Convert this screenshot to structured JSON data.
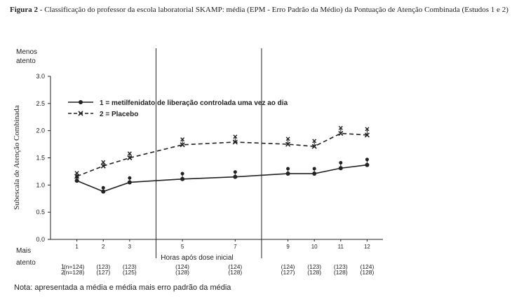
{
  "caption": {
    "label": "Figura 2",
    "text": " - Classificação do professor da escola laboratorial SKAMP: média (EPM - Erro Padrão da Médio) da Pontuação de Atenção Combinada (Estudos 1 e 2)"
  },
  "note": "Nota: apresentada a média e média mais erro padrão da média",
  "chart_data": {
    "type": "line",
    "xlabel": "Horas após dose inicial",
    "ylabel": "Subescala de Atenção Combinada",
    "top_label_line1": "Menos",
    "top_label_line2": "atento",
    "bottom_label_line1": "Mais",
    "bottom_label_line2": "atento",
    "x": [
      1,
      2,
      3,
      5,
      7,
      9,
      10,
      11,
      12
    ],
    "xticks": [
      "1",
      "2",
      "3",
      "5",
      "7",
      "9",
      "10",
      "11",
      "12"
    ],
    "xlim": [
      0,
      12.6
    ],
    "ylim": [
      0,
      3.0
    ],
    "yticks": [
      "0.0",
      "0.5",
      "1.0",
      "1.5",
      "2.0",
      "2.5",
      "3.0"
    ],
    "ytick_values": [
      0,
      0.5,
      1.0,
      1.5,
      2.0,
      2.5,
      3.0
    ],
    "vertical_lines_x": [
      4,
      8
    ],
    "legend_position": "top-left",
    "series": [
      {
        "name": "1 = metilfenidato de liberação controlada uma vez ao dia",
        "style": "solid",
        "marker": "circle",
        "values": [
          1.08,
          0.88,
          1.05,
          1.11,
          1.15,
          1.21,
          1.21,
          1.31,
          1.37
        ],
        "upper": [
          1.15,
          0.95,
          1.13,
          1.21,
          1.24,
          1.3,
          1.3,
          1.41,
          1.47
        ],
        "n_label": "1",
        "n_values": [
          "(n=124)",
          "(123)",
          "(123)",
          "(124)",
          "(124)",
          "(124)",
          "(123)",
          "(123)",
          "(124)"
        ]
      },
      {
        "name": "2 = Placebo",
        "style": "dashed",
        "marker": "x",
        "values": [
          1.16,
          1.35,
          1.5,
          1.74,
          1.79,
          1.75,
          1.71,
          1.95,
          1.92
        ],
        "upper": [
          1.22,
          1.42,
          1.58,
          1.84,
          1.89,
          1.85,
          1.81,
          2.05,
          2.03
        ],
        "n_label": "2",
        "n_values": [
          "(n=128)",
          "(127)",
          "(125)",
          "(128)",
          "(128)",
          "(127)",
          "(128)",
          "(128)",
          "(128)"
        ]
      }
    ],
    "colors": {
      "line": "#222222",
      "axis": "#222222"
    }
  }
}
